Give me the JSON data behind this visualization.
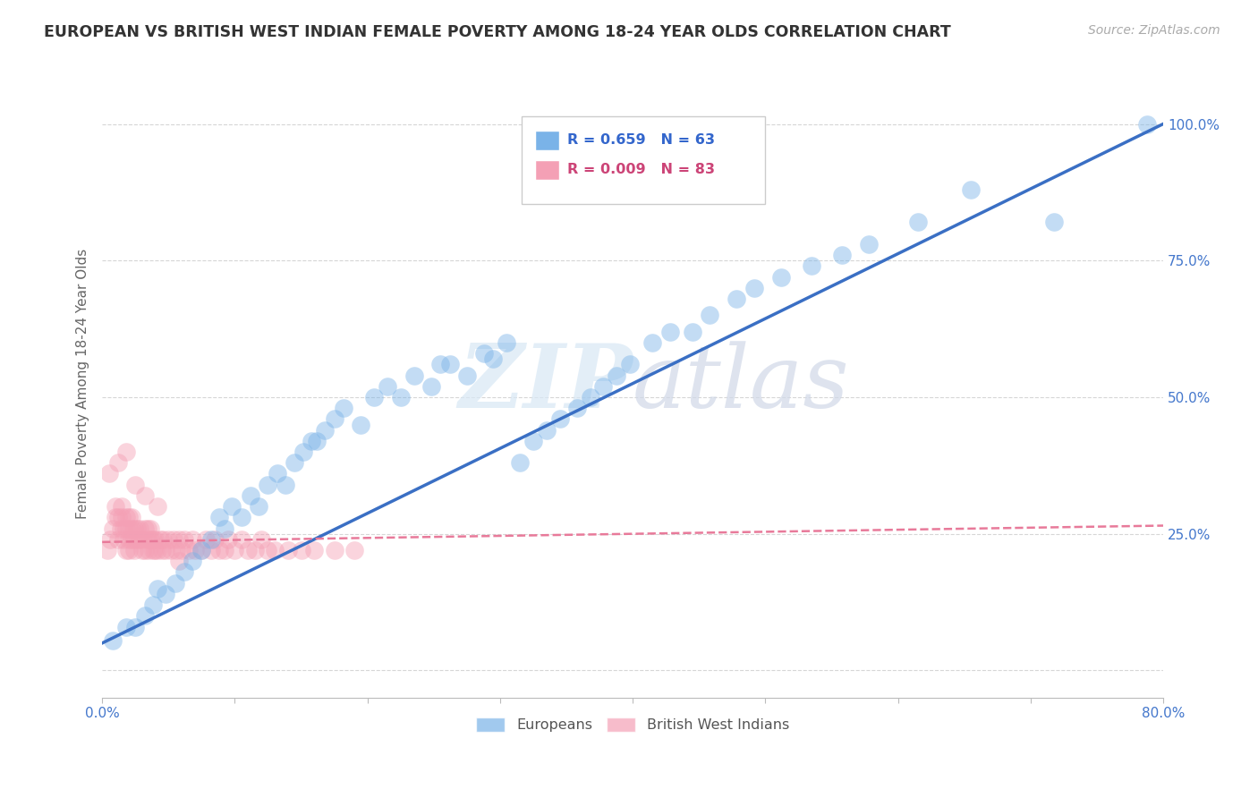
{
  "title": "EUROPEAN VS BRITISH WEST INDIAN FEMALE POVERTY AMONG 18-24 YEAR OLDS CORRELATION CHART",
  "source": "Source: ZipAtlas.com",
  "ylabel": "Female Poverty Among 18-24 Year Olds",
  "xlim": [
    0.0,
    0.8
  ],
  "ylim": [
    -0.05,
    1.1
  ],
  "xtick_positions": [
    0.0,
    0.1,
    0.2,
    0.3,
    0.4,
    0.5,
    0.6,
    0.7,
    0.8
  ],
  "xticklabels": [
    "0.0%",
    "",
    "",
    "",
    "",
    "",
    "",
    "",
    "80.0%"
  ],
  "ytick_positions": [
    0.0,
    0.25,
    0.5,
    0.75,
    1.0
  ],
  "yticklabels": [
    "",
    "25.0%",
    "50.0%",
    "75.0%",
    "100.0%"
  ],
  "background_color": "#ffffff",
  "grid_color": "#cccccc",
  "watermark_zip": "ZIP",
  "watermark_atlas": "atlas",
  "legend_R1": "R = 0.659",
  "legend_N1": "N = 63",
  "legend_R2": "R = 0.009",
  "legend_N2": "N = 83",
  "blue_color": "#7ab3e8",
  "pink_color": "#f4a0b5",
  "blue_line_color": "#3a6fc4",
  "pink_line_color": "#e87a9a",
  "eu_x": [
    0.008,
    0.018,
    0.025,
    0.032,
    0.038,
    0.042,
    0.048,
    0.055,
    0.062,
    0.068,
    0.075,
    0.082,
    0.088,
    0.092,
    0.098,
    0.105,
    0.112,
    0.118,
    0.125,
    0.132,
    0.138,
    0.145,
    0.152,
    0.158,
    0.162,
    0.168,
    0.175,
    0.182,
    0.195,
    0.205,
    0.215,
    0.225,
    0.235,
    0.248,
    0.255,
    0.262,
    0.275,
    0.288,
    0.295,
    0.305,
    0.315,
    0.325,
    0.335,
    0.345,
    0.358,
    0.368,
    0.378,
    0.388,
    0.398,
    0.415,
    0.428,
    0.445,
    0.458,
    0.478,
    0.492,
    0.512,
    0.535,
    0.558,
    0.578,
    0.615,
    0.655,
    0.718,
    0.788
  ],
  "eu_y": [
    0.055,
    0.08,
    0.08,
    0.1,
    0.12,
    0.15,
    0.14,
    0.16,
    0.18,
    0.2,
    0.22,
    0.24,
    0.28,
    0.26,
    0.3,
    0.28,
    0.32,
    0.3,
    0.34,
    0.36,
    0.34,
    0.38,
    0.4,
    0.42,
    0.42,
    0.44,
    0.46,
    0.48,
    0.45,
    0.5,
    0.52,
    0.5,
    0.54,
    0.52,
    0.56,
    0.56,
    0.54,
    0.58,
    0.57,
    0.6,
    0.38,
    0.42,
    0.44,
    0.46,
    0.48,
    0.5,
    0.52,
    0.54,
    0.56,
    0.6,
    0.62,
    0.62,
    0.65,
    0.68,
    0.7,
    0.72,
    0.74,
    0.76,
    0.78,
    0.82,
    0.88,
    0.82,
    1.0
  ],
  "bwi_x": [
    0.004,
    0.006,
    0.008,
    0.01,
    0.01,
    0.012,
    0.012,
    0.014,
    0.015,
    0.015,
    0.016,
    0.016,
    0.018,
    0.018,
    0.018,
    0.02,
    0.02,
    0.02,
    0.02,
    0.022,
    0.022,
    0.022,
    0.024,
    0.024,
    0.024,
    0.026,
    0.026,
    0.028,
    0.028,
    0.03,
    0.03,
    0.032,
    0.032,
    0.034,
    0.034,
    0.035,
    0.036,
    0.036,
    0.038,
    0.038,
    0.04,
    0.04,
    0.042,
    0.044,
    0.045,
    0.046,
    0.048,
    0.05,
    0.052,
    0.054,
    0.056,
    0.058,
    0.06,
    0.062,
    0.065,
    0.068,
    0.07,
    0.075,
    0.078,
    0.082,
    0.085,
    0.088,
    0.092,
    0.095,
    0.1,
    0.105,
    0.11,
    0.115,
    0.12,
    0.125,
    0.13,
    0.14,
    0.15,
    0.16,
    0.175,
    0.19,
    0.005,
    0.012,
    0.018,
    0.025,
    0.032,
    0.042,
    0.058
  ],
  "bwi_y": [
    0.22,
    0.24,
    0.26,
    0.28,
    0.3,
    0.28,
    0.24,
    0.26,
    0.3,
    0.28,
    0.24,
    0.26,
    0.22,
    0.26,
    0.28,
    0.24,
    0.26,
    0.28,
    0.22,
    0.24,
    0.26,
    0.28,
    0.24,
    0.26,
    0.22,
    0.24,
    0.26,
    0.24,
    0.26,
    0.22,
    0.24,
    0.26,
    0.22,
    0.24,
    0.26,
    0.22,
    0.24,
    0.26,
    0.22,
    0.24,
    0.22,
    0.24,
    0.22,
    0.24,
    0.22,
    0.24,
    0.22,
    0.24,
    0.22,
    0.24,
    0.22,
    0.24,
    0.22,
    0.24,
    0.22,
    0.24,
    0.22,
    0.22,
    0.24,
    0.22,
    0.24,
    0.22,
    0.22,
    0.24,
    0.22,
    0.24,
    0.22,
    0.22,
    0.24,
    0.22,
    0.22,
    0.22,
    0.22,
    0.22,
    0.22,
    0.22,
    0.36,
    0.38,
    0.4,
    0.34,
    0.32,
    0.3,
    0.2
  ]
}
